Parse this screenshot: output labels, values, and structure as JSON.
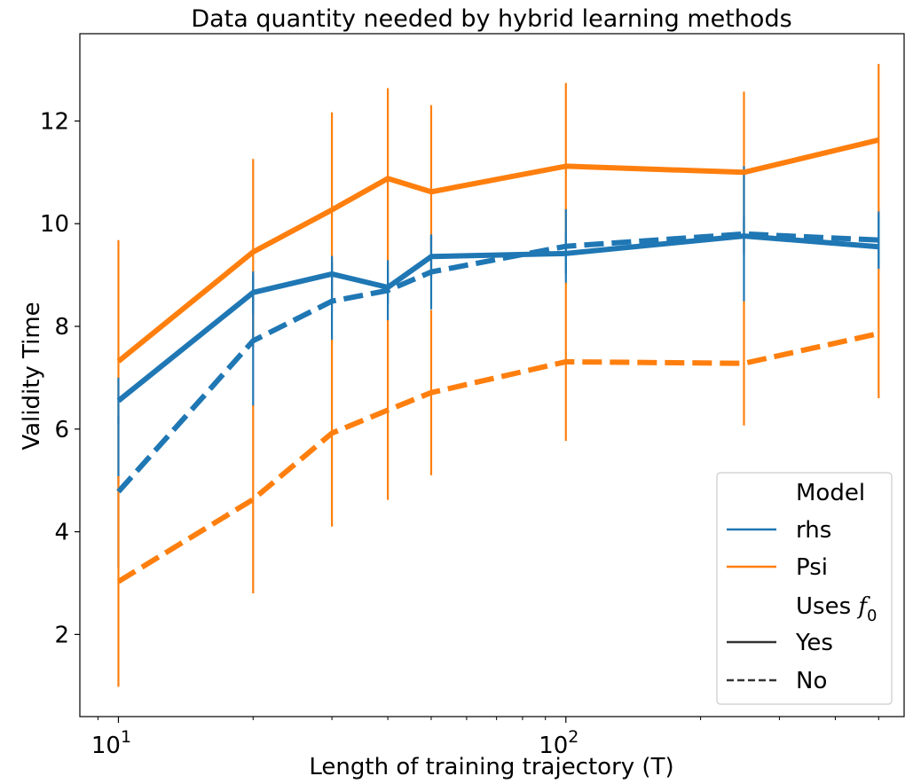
{
  "chart_data": {
    "type": "line",
    "title": "Data quantity needed by hybrid learning methods",
    "xlabel": "Length of training trajectory (T)",
    "ylabel": "Validity Time",
    "xscale": "log",
    "xlim": [
      8.2,
      570
    ],
    "ylim": [
      0.4,
      13.7
    ],
    "x_ticks": [
      10,
      100
    ],
    "x_tick_labels": [
      {
        "base": "10",
        "exp": "1"
      },
      {
        "base": "10",
        "exp": "2"
      }
    ],
    "y_ticks": [
      2,
      4,
      6,
      8,
      10,
      12
    ],
    "y_tick_labels": [
      "2",
      "4",
      "6",
      "8",
      "10",
      "12"
    ],
    "x": [
      10,
      20,
      30,
      40,
      50,
      100,
      250,
      500
    ],
    "series": [
      {
        "name": "Psi Yes",
        "model": "Psi",
        "uses_f0": "Yes",
        "color": "#ff7f0e",
        "dash": "solid",
        "values": [
          7.32,
          9.45,
          10.27,
          10.88,
          10.62,
          11.12,
          11.0,
          11.63
        ],
        "err_low": [
          4.95,
          7.62,
          8.42,
          9.12,
          8.94,
          9.52,
          9.45,
          10.12
        ],
        "err_high": [
          9.68,
          11.26,
          12.17,
          12.64,
          12.31,
          12.74,
          12.57,
          13.11
        ]
      },
      {
        "name": "rhs Yes",
        "model": "rhs",
        "uses_f0": "Yes",
        "color": "#1f77b4",
        "dash": "solid",
        "values": [
          6.55,
          8.66,
          9.02,
          8.76,
          9.36,
          9.42,
          9.76,
          9.55
        ],
        "err_low": [
          6.1,
          8.25,
          8.67,
          8.43,
          8.95,
          9.02,
          9.39,
          9.12
        ],
        "err_high": [
          7.0,
          9.07,
          9.37,
          9.12,
          9.77,
          9.82,
          10.13,
          10.18
        ]
      },
      {
        "name": "rhs No",
        "model": "rhs",
        "uses_f0": "No",
        "color": "#1f77b4",
        "dash": "dashed",
        "values": [
          4.78,
          7.72,
          8.49,
          8.7,
          9.06,
          9.56,
          9.8,
          9.68
        ],
        "err_low": [
          3.3,
          6.44,
          7.73,
          8.11,
          8.33,
          8.84,
          8.48,
          9.12
        ],
        "err_high": [
          6.26,
          9.0,
          9.25,
          9.29,
          9.79,
          10.28,
          11.12,
          10.24
        ]
      },
      {
        "name": "Psi No",
        "model": "Psi",
        "uses_f0": "No",
        "color": "#ff7f0e",
        "dash": "dashed",
        "values": [
          3.03,
          4.63,
          5.92,
          6.37,
          6.71,
          7.31,
          7.28,
          7.86
        ],
        "err_low": [
          0.98,
          2.8,
          4.1,
          4.62,
          5.1,
          5.77,
          6.07,
          6.6
        ],
        "err_high": [
          5.08,
          6.46,
          7.74,
          8.12,
          8.32,
          8.85,
          8.49,
          9.12
        ]
      }
    ],
    "legend": {
      "position": "lower-right",
      "title_model": "Model",
      "items_model": [
        {
          "label": "rhs",
          "color": "#1f77b4",
          "dash": "solid"
        },
        {
          "label": "Psi",
          "color": "#ff7f0e",
          "dash": "solid"
        }
      ],
      "title_style_prefix": "Uses ",
      "title_style_math": "f",
      "title_style_sub": "0",
      "items_style": [
        {
          "label": "Yes",
          "color": "#333333",
          "dash": "solid"
        },
        {
          "label": "No",
          "color": "#333333",
          "dash": "dashed"
        }
      ]
    }
  }
}
